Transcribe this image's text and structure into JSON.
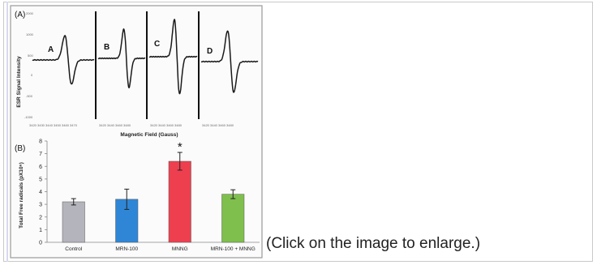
{
  "caption": "(Click on the image to enlarge.)",
  "figure": {
    "panel_a": {
      "label": "(A)",
      "ylabel": "ESR Signal Intensity",
      "xlabel": "Magnetic Field (Gauss)",
      "subpanels": [
        "A",
        "B",
        "C",
        "D"
      ]
    },
    "panel_b": {
      "label": "(B)",
      "significance_marker": "*"
    }
  },
  "colors": {
    "control": "#b4b4bc",
    "mrn100": "#2f86d6",
    "mnng": "#ee3f4f",
    "combo": "#7fbf4d"
  },
  "chart_data": {
    "type": "bar",
    "categories": [
      "Control",
      "MRN-100",
      "MNNG",
      "MRN-100 + MNNG"
    ],
    "values": [
      3.2,
      3.4,
      6.4,
      3.8
    ],
    "errors": [
      0.25,
      0.8,
      0.7,
      0.35
    ],
    "colors": [
      "#b4b4bc",
      "#2f86d6",
      "#ee3f4f",
      "#7fbf4d"
    ],
    "ylabel": "Total Free radicals (pX10⁶)",
    "xlabel": "",
    "ylim": [
      0,
      8
    ],
    "yticks": [
      "0",
      "1",
      "2",
      "3",
      "4",
      "5",
      "6",
      "7",
      "8"
    ],
    "grid": false
  }
}
